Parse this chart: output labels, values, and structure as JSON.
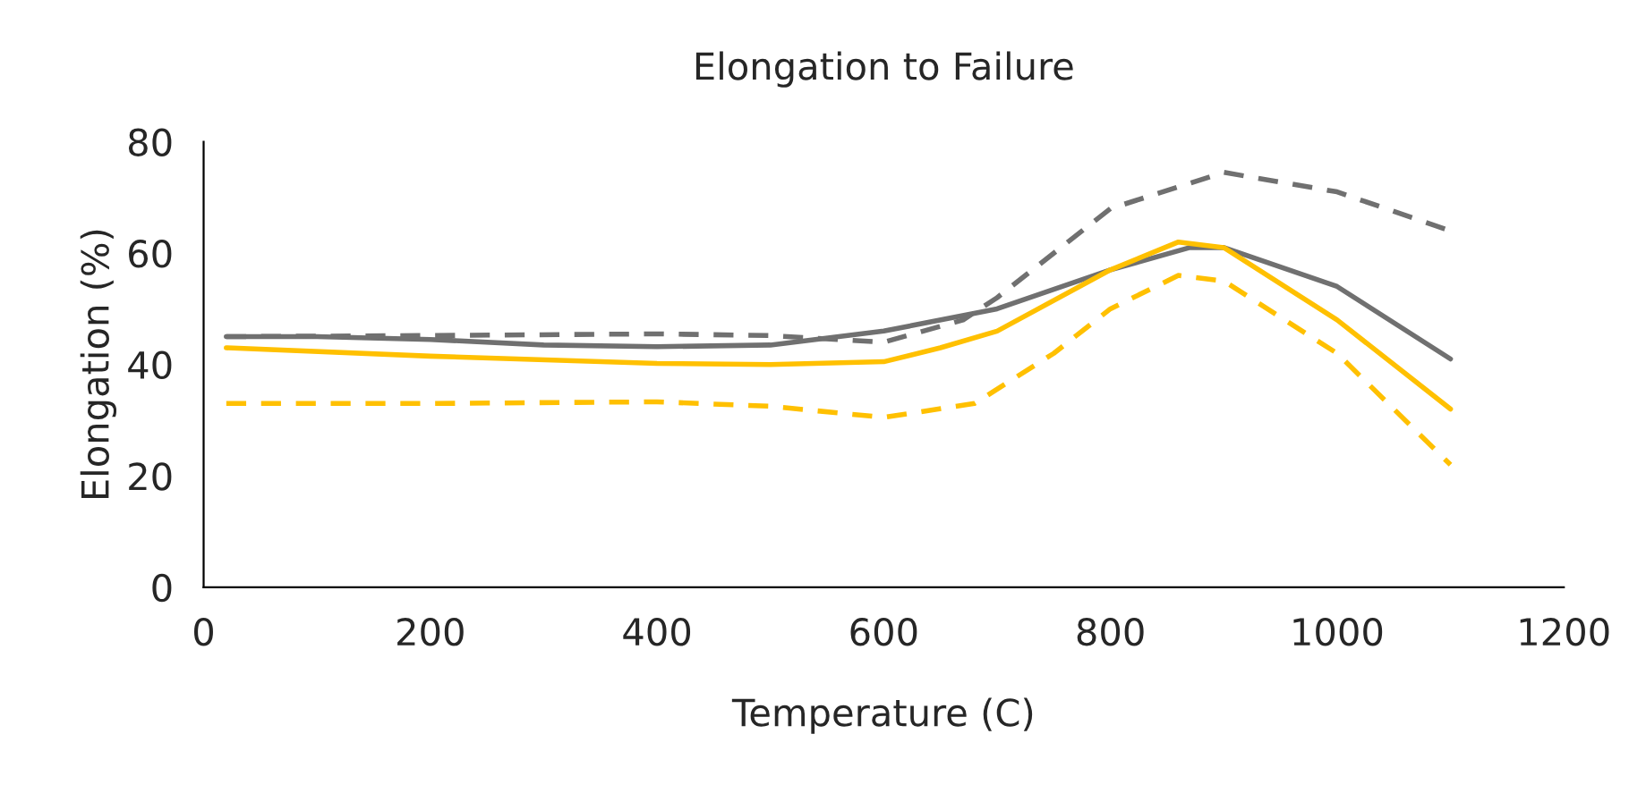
{
  "chart_data": {
    "type": "line",
    "title": "Elongation to Failure",
    "xlabel": "Temperature (C)",
    "ylabel": "Elongation (%)",
    "xlim": [
      0,
      1200
    ],
    "xticks": [
      0,
      200,
      400,
      600,
      800,
      1000,
      1200
    ],
    "ylim": [
      0,
      80
    ],
    "yticks": [
      0,
      20,
      40,
      60,
      80
    ],
    "grid": false,
    "legend": false,
    "series": [
      {
        "color": "#707070",
        "line_style": "solid",
        "x": [
          20,
          100,
          200,
          300,
          400,
          500,
          600,
          700,
          800,
          870,
          900,
          1000,
          1100
        ],
        "values": [
          45,
          45,
          44.5,
          43.5,
          43.2,
          43.5,
          46,
          50,
          57,
          61,
          61,
          54,
          41
        ]
      },
      {
        "color": "#707070",
        "line_style": "dashed",
        "x": [
          20,
          200,
          400,
          500,
          600,
          670,
          700,
          800,
          900,
          1000,
          1100
        ],
        "values": [
          45,
          45.2,
          45.5,
          45.2,
          44,
          48,
          52,
          68,
          74.5,
          71,
          64
        ]
      },
      {
        "color": "#ffc000",
        "line_style": "solid",
        "x": [
          20,
          200,
          400,
          500,
          600,
          650,
          700,
          800,
          860,
          900,
          1000,
          1100
        ],
        "values": [
          43,
          41.5,
          40.2,
          40,
          40.5,
          43,
          46,
          57,
          62,
          61,
          48,
          32
        ]
      },
      {
        "color": "#ffc000",
        "line_style": "dashed",
        "x": [
          20,
          200,
          400,
          500,
          600,
          680,
          750,
          800,
          860,
          900,
          1000,
          1100
        ],
        "values": [
          33,
          33,
          33.3,
          32.5,
          30.5,
          33,
          42,
          50,
          56,
          55,
          42,
          22
        ]
      }
    ]
  }
}
